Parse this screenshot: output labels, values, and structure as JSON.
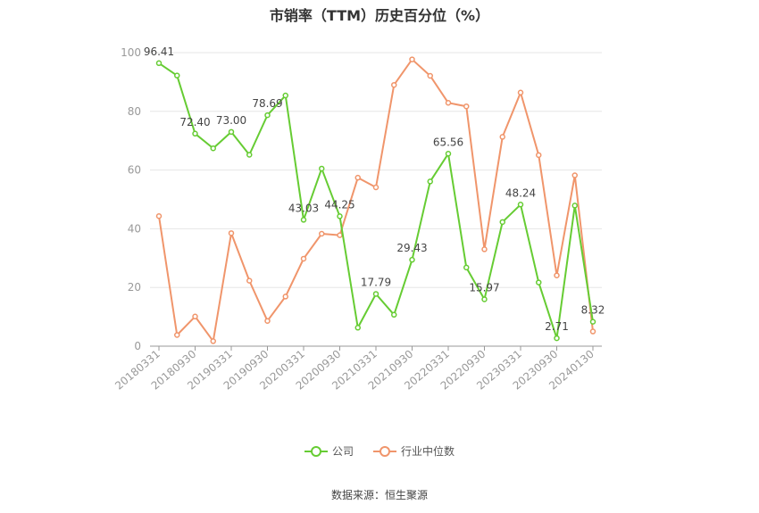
{
  "title": "市销率（TTM）历史百分位（%）",
  "source": "数据来源：恒生聚源",
  "colors": {
    "company": "#66cc33",
    "industry": "#f0956b",
    "grid": "#e6e6e6",
    "axis": "#999999"
  },
  "legend": {
    "company": "公司",
    "industry": "行业中位数"
  },
  "chart_data": {
    "type": "line",
    "ylim": [
      0,
      100
    ],
    "yticks": [
      0,
      20,
      40,
      60,
      80,
      100
    ],
    "xtick_labels": [
      "20180331",
      "20180930",
      "20190331",
      "20190930",
      "20200331",
      "20200930",
      "20210331",
      "20210930",
      "20220331",
      "20220930",
      "20230331",
      "20230930",
      "20240130"
    ],
    "x": [
      "20180331",
      "20180630",
      "20180930",
      "20181231",
      "20190331",
      "20190630",
      "20190930",
      "20191231",
      "20200331",
      "20200630",
      "20200930",
      "20201231",
      "20210331",
      "20210630",
      "20210930",
      "20211231",
      "20220331",
      "20220630",
      "20220930",
      "20221231",
      "20230331",
      "20230630",
      "20230930",
      "20231231",
      "20240130"
    ],
    "series": [
      {
        "name": "公司",
        "values": [
          96.41,
          92.2,
          72.4,
          67.4,
          73.0,
          65.2,
          78.69,
          85.4,
          43.03,
          60.5,
          44.25,
          6.3,
          17.79,
          10.7,
          29.43,
          56.1,
          65.56,
          26.8,
          15.97,
          42.3,
          48.24,
          21.7,
          2.71,
          47.9,
          8.32
        ]
      },
      {
        "name": "行业中位数",
        "values": [
          44.3,
          3.8,
          10.1,
          1.7,
          38.5,
          22.3,
          8.6,
          16.9,
          29.8,
          38.3,
          37.8,
          57.4,
          54.1,
          89.0,
          97.7,
          92.1,
          82.9,
          81.7,
          33.0,
          71.3,
          86.4,
          65.1,
          24.1,
          58.2,
          5.0
        ]
      }
    ],
    "data_labels": [
      {
        "index": 0,
        "text": "96.41"
      },
      {
        "index": 2,
        "text": "72.40"
      },
      {
        "index": 4,
        "text": "73.00"
      },
      {
        "index": 6,
        "text": "78.69"
      },
      {
        "index": 8,
        "text": "43.03"
      },
      {
        "index": 10,
        "text": "44.25"
      },
      {
        "index": 12,
        "text": "17.79"
      },
      {
        "index": 14,
        "text": "29.43"
      },
      {
        "index": 16,
        "text": "65.56"
      },
      {
        "index": 18,
        "text": "15.97"
      },
      {
        "index": 20,
        "text": "48.24"
      },
      {
        "index": 22,
        "text": "2.71"
      },
      {
        "index": 24,
        "text": "8.32"
      }
    ],
    "grid": true,
    "legend_position": "bottom"
  }
}
